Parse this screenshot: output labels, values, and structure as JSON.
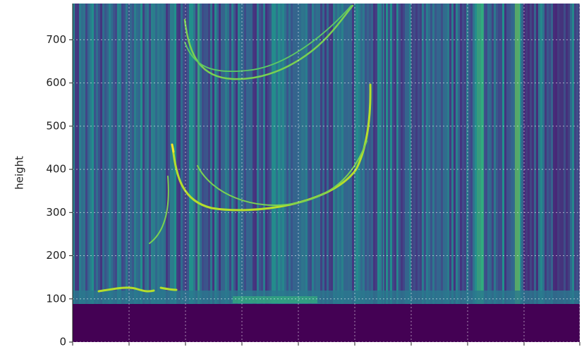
{
  "chart_data": {
    "type": "heatmap",
    "ylabel": "height",
    "ylim": [
      0,
      784
    ],
    "yticks": [
      0,
      100,
      200,
      300,
      400,
      500,
      600,
      700
    ],
    "grid": true
  }
}
